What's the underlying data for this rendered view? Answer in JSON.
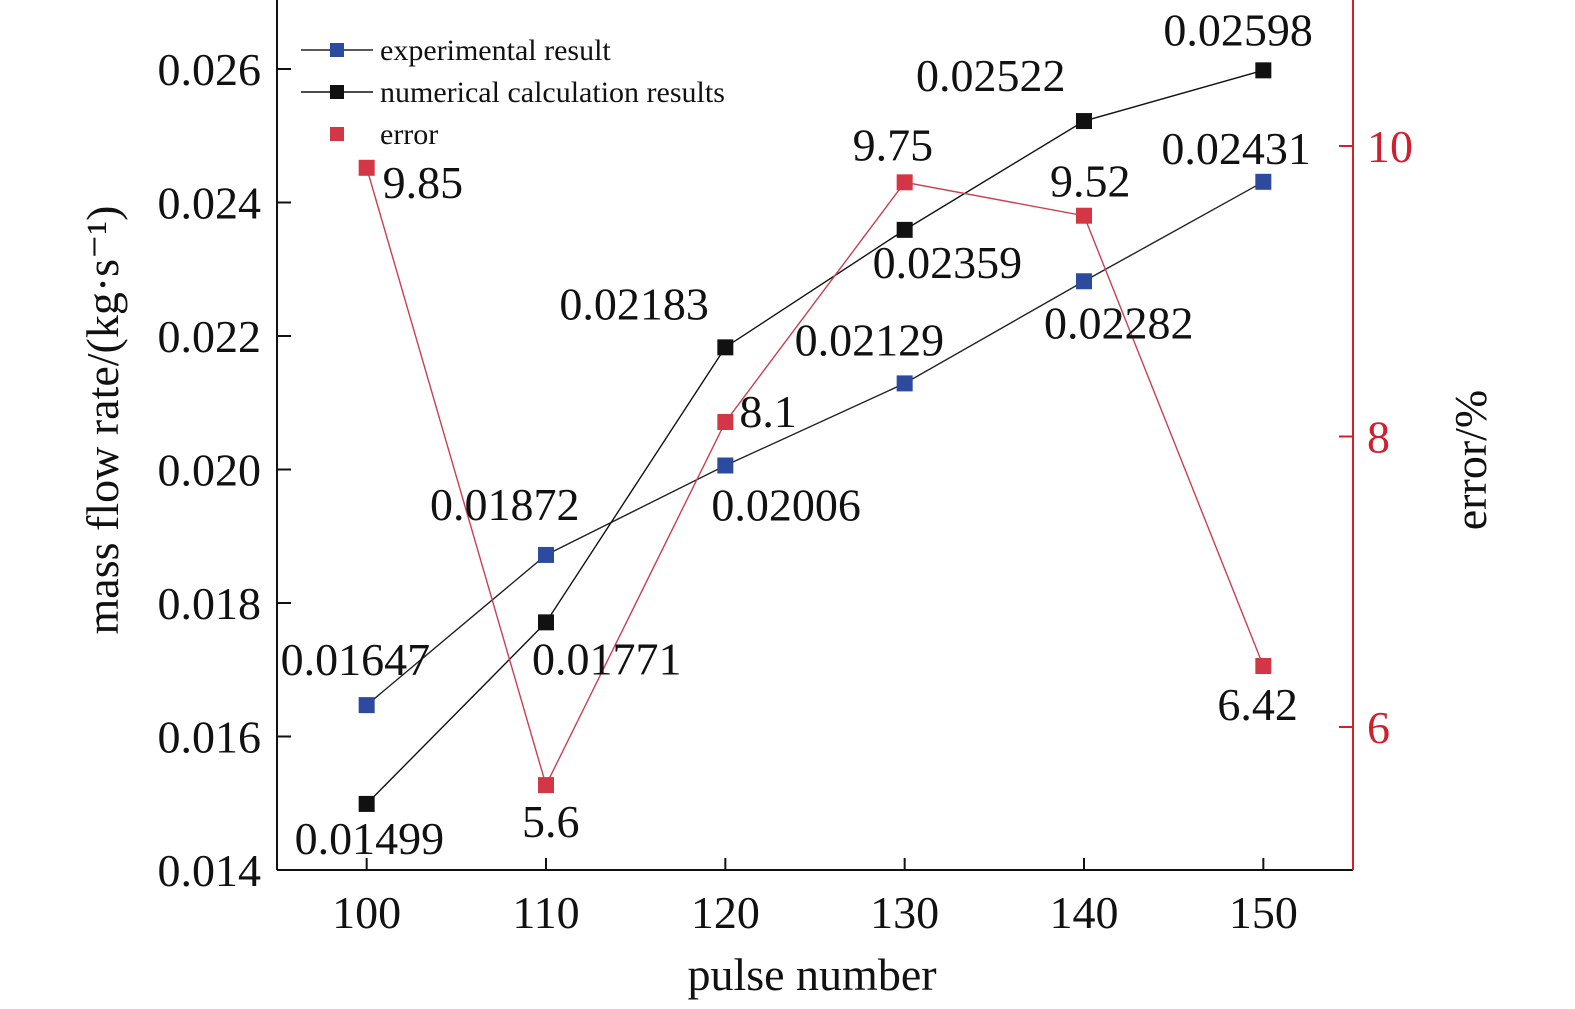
{
  "chart_data": {
    "type": "line",
    "x": [
      100,
      110,
      120,
      130,
      140,
      150
    ],
    "xlabel": "pulse number",
    "ylabel": "mass flow rate/(kg·s⁻¹)",
    "y2label": "error/%",
    "xlim": [
      95,
      155
    ],
    "ylim": [
      0.014,
      0.027
    ],
    "y2lim": [
      5,
      11
    ],
    "xticks": [
      "100",
      "110",
      "120",
      "130",
      "140",
      "150"
    ],
    "yticks": [
      "0.014",
      "0.016",
      "0.018",
      "0.020",
      "0.022",
      "0.024",
      "0.026"
    ],
    "y2ticks": [
      "6",
      "8",
      "10"
    ],
    "legend_position": "top-left",
    "grid": false,
    "series": [
      {
        "name": "experimental result",
        "axis": "left",
        "color": "#2c4a9e",
        "line_color": "#222222",
        "values": [
          0.01647,
          0.01872,
          0.02006,
          0.02129,
          0.02282,
          0.02431
        ],
        "labels": [
          "0.01647",
          "0.01872",
          "0.02006",
          "0.02129",
          "0.02282",
          "0.02431"
        ]
      },
      {
        "name": "numerical calculation results",
        "axis": "left",
        "color": "#111111",
        "line_color": "#111111",
        "values": [
          0.01499,
          0.01771,
          0.02183,
          0.02359,
          0.02522,
          0.02598
        ],
        "labels": [
          "0.01499",
          "0.01771",
          "0.02183",
          "0.02359",
          "0.02522",
          "0.02598"
        ]
      },
      {
        "name": "error",
        "axis": "right",
        "color": "#d33645",
        "line_color": "#c94050",
        "values": [
          9.85,
          5.6,
          8.1,
          9.75,
          9.52,
          6.42
        ],
        "labels": [
          "9.85",
          "5.6",
          "8.1",
          "9.75",
          "9.52",
          "6.42"
        ]
      }
    ],
    "right_axis_color": "#d0202e"
  }
}
